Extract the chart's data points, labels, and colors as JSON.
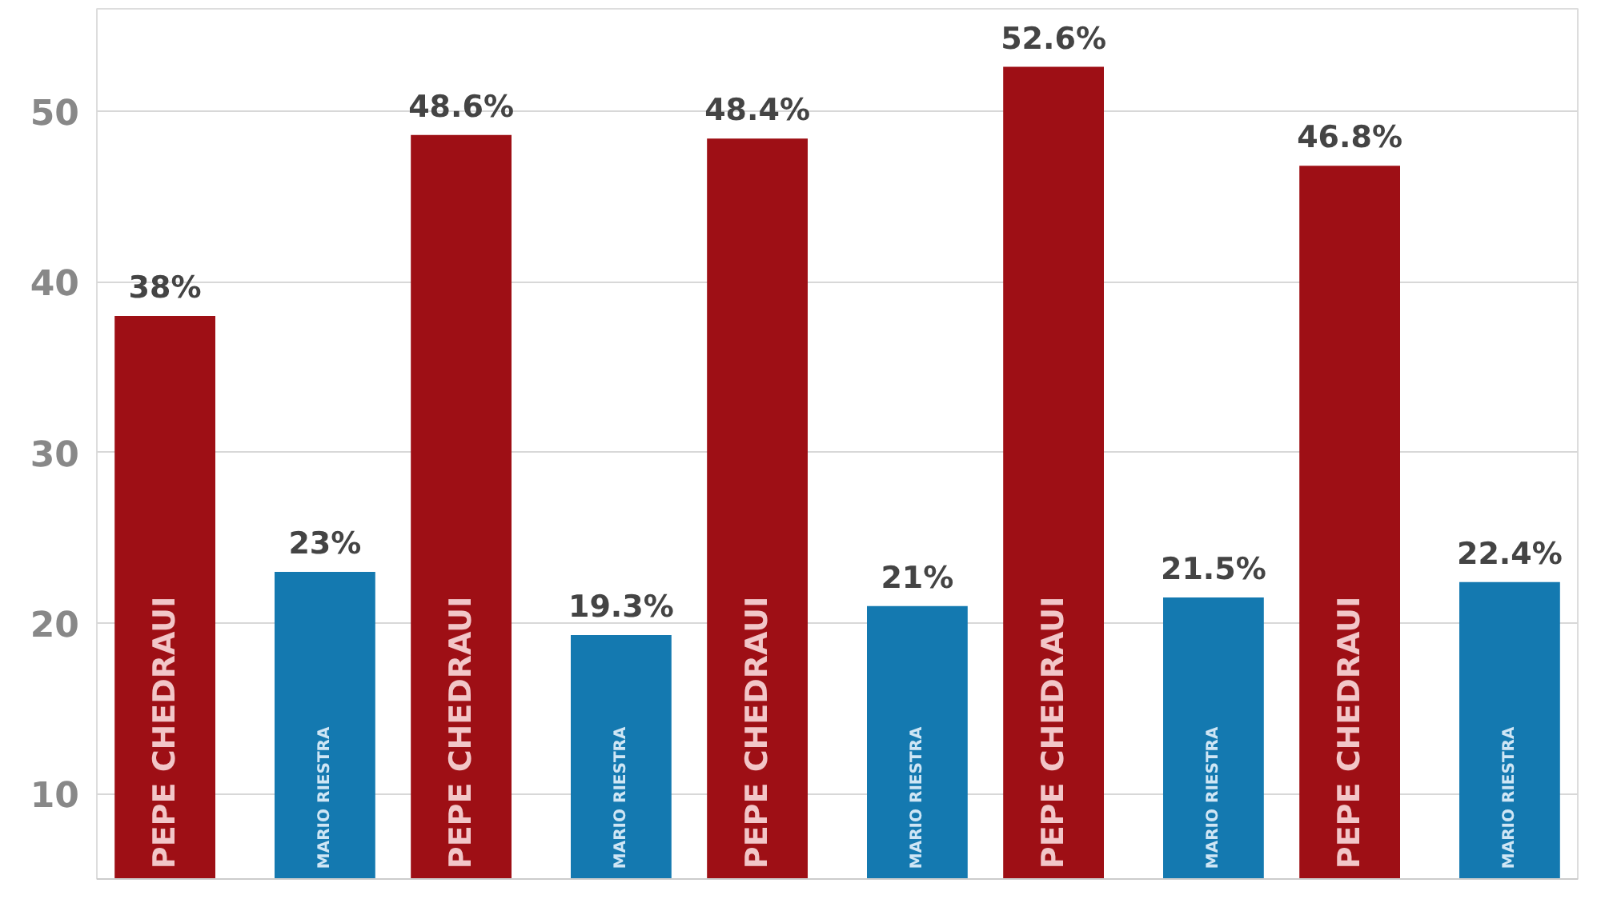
{
  "chart_data": {
    "type": "bar",
    "categories": [
      null,
      null,
      null,
      null,
      null
    ],
    "series": [
      {
        "name": "PEPE CHEDRAUI",
        "color": "#9e0f15",
        "values": [
          38,
          48.6,
          48.4,
          52.6,
          46.8
        ],
        "value_labels": [
          "38%",
          "48.6%",
          "48.4%",
          "52.6%",
          "46.8%"
        ]
      },
      {
        "name": "MARIO RIESTRA",
        "color": "#1479b0",
        "values": [
          23,
          19.3,
          21,
          21.5,
          22.4
        ],
        "value_labels": [
          "23%",
          "19.3%",
          "21%",
          "21.5%",
          "22.4%"
        ]
      }
    ],
    "ylim": [
      5,
      56
    ],
    "yticks": [
      10,
      20,
      30,
      40,
      50
    ],
    "grid": "y"
  }
}
